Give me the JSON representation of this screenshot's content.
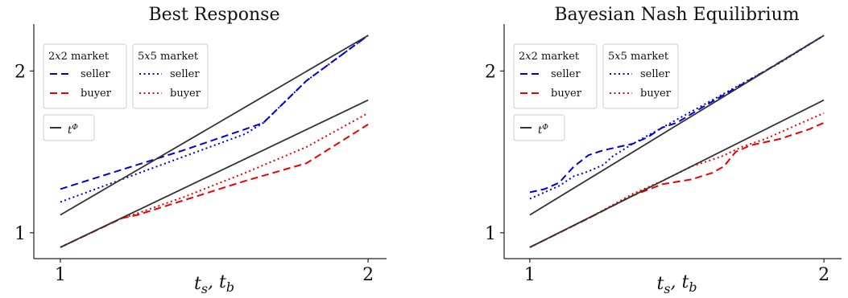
{
  "chart_data": [
    {
      "type": "line",
      "title": "Best Response",
      "xlabel": "t_s, t_b",
      "ylabel": "",
      "xlim": [
        0.94,
        2.06
      ],
      "ylim": [
        0.84,
        2.29
      ],
      "xticks": [
        1,
        2
      ],
      "yticks": [
        1,
        2
      ],
      "grid": false,
      "legend_groups": [
        {
          "title": "2x2 market",
          "entries": [
            "seller",
            "buyer"
          ],
          "style": "dashed"
        },
        {
          "title": "5x5 market",
          "entries": [
            "seller",
            "buyer"
          ],
          "style": "dotted"
        }
      ],
      "reference_legend": "t^Φ",
      "series": [
        {
          "name": "seller",
          "group": "2x2 market",
          "color": "#0000dd",
          "dash": "dashed",
          "x": [
            1.0,
            1.2,
            1.4,
            1.6,
            1.66,
            1.8,
            2.0
          ],
          "y": [
            1.27,
            1.39,
            1.51,
            1.64,
            1.68,
            1.94,
            2.22
          ]
        },
        {
          "name": "buyer",
          "group": "2x2 market",
          "color": "#ee0000",
          "dash": "dashed",
          "x": [
            1.0,
            1.2,
            1.25,
            1.4,
            1.6,
            1.8,
            2.0
          ],
          "y": [
            0.91,
            1.09,
            1.11,
            1.2,
            1.32,
            1.43,
            1.67
          ]
        },
        {
          "name": "seller",
          "group": "5x5 market",
          "color": "#0000dd",
          "dash": "dotted",
          "x": [
            1.0,
            1.2,
            1.4,
            1.6,
            1.66,
            1.8,
            2.0
          ],
          "y": [
            1.19,
            1.33,
            1.47,
            1.61,
            1.68,
            1.94,
            2.22
          ]
        },
        {
          "name": "buyer",
          "group": "5x5 market",
          "color": "#ee0000",
          "dash": "dotted",
          "x": [
            1.0,
            1.2,
            1.25,
            1.4,
            1.6,
            1.8,
            2.0
          ],
          "y": [
            0.91,
            1.09,
            1.12,
            1.22,
            1.37,
            1.53,
            1.74
          ]
        },
        {
          "name": "t^Φ upper",
          "color": "#333333",
          "dash": "solid",
          "x": [
            1.0,
            2.0
          ],
          "y": [
            1.11,
            2.22
          ]
        },
        {
          "name": "t^Φ lower",
          "color": "#333333",
          "dash": "solid",
          "x": [
            1.0,
            2.0
          ],
          "y": [
            0.91,
            1.82
          ]
        }
      ]
    },
    {
      "type": "line",
      "title": "Bayesian Nash Equilibrium",
      "xlabel": "t_s, t_b",
      "ylabel": "",
      "xlim": [
        0.94,
        2.06
      ],
      "ylim": [
        0.84,
        2.29
      ],
      "xticks": [
        1,
        2
      ],
      "yticks": [
        1,
        2
      ],
      "grid": false,
      "legend_groups": [
        {
          "title": "2x2 market",
          "entries": [
            "seller",
            "buyer"
          ],
          "style": "dashed"
        },
        {
          "title": "5x5 market",
          "entries": [
            "seller",
            "buyer"
          ],
          "style": "dotted"
        }
      ],
      "reference_legend": "t^Φ",
      "series": [
        {
          "name": "seller",
          "group": "2x2 market",
          "color": "#0000dd",
          "dash": "dashed",
          "x": [
            1.0,
            1.05,
            1.1,
            1.15,
            1.2,
            1.25,
            1.3,
            1.35,
            1.4,
            1.45,
            1.5,
            1.6,
            1.8,
            2.0
          ],
          "y": [
            1.25,
            1.27,
            1.31,
            1.41,
            1.48,
            1.51,
            1.53,
            1.55,
            1.59,
            1.65,
            1.68,
            1.79,
            2.0,
            2.22
          ]
        },
        {
          "name": "buyer",
          "group": "2x2 market",
          "color": "#ee0000",
          "dash": "dashed",
          "x": [
            1.0,
            1.2,
            1.35,
            1.45,
            1.55,
            1.62,
            1.66,
            1.7,
            1.75,
            1.8,
            1.85,
            1.9,
            1.95,
            2.0
          ],
          "y": [
            0.91,
            1.09,
            1.23,
            1.3,
            1.33,
            1.37,
            1.41,
            1.5,
            1.54,
            1.56,
            1.58,
            1.61,
            1.64,
            1.68
          ]
        },
        {
          "name": "seller",
          "group": "5x5 market",
          "color": "#0000dd",
          "dash": "dotted",
          "x": [
            1.0,
            1.1,
            1.15,
            1.2,
            1.25,
            1.28,
            1.35,
            1.45,
            1.55,
            1.7,
            1.85,
            2.0
          ],
          "y": [
            1.21,
            1.29,
            1.35,
            1.38,
            1.42,
            1.47,
            1.55,
            1.65,
            1.75,
            1.9,
            2.05,
            2.22
          ]
        },
        {
          "name": "buyer",
          "group": "5x5 market",
          "color": "#ee0000",
          "dash": "dotted",
          "x": [
            1.0,
            1.2,
            1.35,
            1.45,
            1.55,
            1.65,
            1.72,
            1.8,
            1.9,
            2.0
          ],
          "y": [
            0.91,
            1.09,
            1.24,
            1.32,
            1.41,
            1.47,
            1.53,
            1.58,
            1.66,
            1.74
          ]
        },
        {
          "name": "t^Φ upper",
          "color": "#333333",
          "dash": "solid",
          "x": [
            1.0,
            2.0
          ],
          "y": [
            1.11,
            2.22
          ]
        },
        {
          "name": "t^Φ lower",
          "color": "#333333",
          "dash": "solid",
          "x": [
            1.0,
            2.0
          ],
          "y": [
            0.91,
            1.82
          ]
        }
      ]
    }
  ]
}
